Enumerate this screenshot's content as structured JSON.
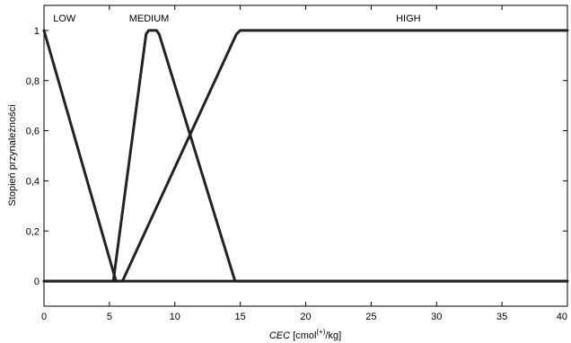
{
  "chart_data": {
    "type": "line",
    "xlabel_italic": "CEC",
    "xlabel_pre": " [cmol",
    "xlabel_sup": "(+)",
    "xlabel_post": "/kg]",
    "ylabel": "Stopień przynależności",
    "xlim": [
      0,
      40
    ],
    "ylim": [
      -0.1,
      1.1
    ],
    "x_ticks": [
      0,
      5,
      10,
      15,
      20,
      25,
      30,
      35,
      40
    ],
    "x_tick_labels": [
      "0",
      "5",
      "10",
      "15",
      "20",
      "25",
      "30",
      "35",
      "40"
    ],
    "y_ticks": [
      0,
      0.2,
      0.4,
      0.6,
      0.8,
      1
    ],
    "y_tick_labels": [
      "0",
      "0,2",
      "0,4",
      "0,6",
      "0,8",
      "1"
    ],
    "grid": false,
    "line_color": "#222222",
    "series": [
      {
        "name": "LOW",
        "x": [
          0,
          5.5,
          5.7,
          40
        ],
        "y": [
          1,
          0,
          0,
          0
        ]
      },
      {
        "name": "MEDIUM",
        "x": [
          0,
          5.3,
          7.8,
          8.0,
          8.6,
          8.8,
          14.6,
          14.8,
          40
        ],
        "y": [
          0,
          0,
          0.985,
          1,
          1,
          0.985,
          0,
          0,
          0
        ]
      },
      {
        "name": "HIGH",
        "x": [
          0,
          5.8,
          6.0,
          14.7,
          15.0,
          40
        ],
        "y": [
          0,
          0,
          0,
          0.985,
          1,
          1
        ]
      }
    ],
    "labels": [
      {
        "text": "LOW",
        "x": 0.7
      },
      {
        "text": "MEDIUM",
        "x": 6.5
      },
      {
        "text": "HIGH",
        "x": 26.9
      }
    ]
  }
}
